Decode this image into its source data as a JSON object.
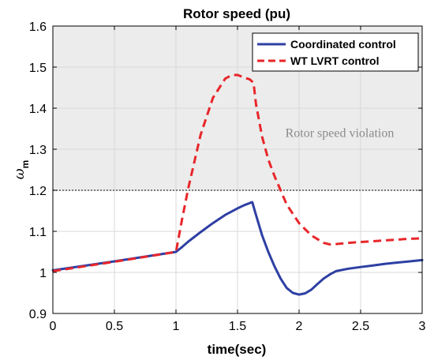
{
  "chart_data": {
    "type": "line",
    "title": "Rotor speed (pu)",
    "xlabel": "time(sec)",
    "ylabel": "ω",
    "ylabel_subscript": "m",
    "xlim": [
      0,
      3
    ],
    "ylim": [
      0.9,
      1.6
    ],
    "xticks": [
      "0",
      "0.5",
      "1",
      "1.5",
      "2",
      "2.5",
      "3"
    ],
    "yticks": [
      "0.9",
      "1",
      "1.1",
      "1.2",
      "1.3",
      "1.4",
      "1.5",
      "1.6"
    ],
    "grid": true,
    "legend_position": "top-right",
    "threshold": {
      "y": 1.2,
      "color": "#555555",
      "style": "dotted"
    },
    "violation_region": {
      "from": 1.2,
      "to": 1.6,
      "color": "#ececec",
      "label": "Rotor speed violation"
    },
    "series": [
      {
        "name": "Coordinated control",
        "color": "#2e3fa3",
        "style": "solid",
        "x": [
          0,
          0.5,
          1.0,
          1.05,
          1.1,
          1.2,
          1.3,
          1.4,
          1.5,
          1.55,
          1.6,
          1.62,
          1.65,
          1.7,
          1.75,
          1.8,
          1.85,
          1.9,
          1.95,
          2.0,
          2.05,
          2.1,
          2.15,
          2.2,
          2.25,
          2.3,
          2.4,
          2.5,
          2.6,
          2.7,
          2.8,
          2.9,
          3.0
        ],
        "y": [
          1.005,
          1.027,
          1.05,
          1.062,
          1.075,
          1.098,
          1.12,
          1.14,
          1.156,
          1.163,
          1.169,
          1.171,
          1.14,
          1.09,
          1.05,
          1.015,
          0.985,
          0.962,
          0.95,
          0.946,
          0.949,
          0.958,
          0.972,
          0.985,
          0.995,
          1.003,
          1.009,
          1.013,
          1.017,
          1.021,
          1.024,
          1.027,
          1.03
        ]
      },
      {
        "name": "WT LVRT control",
        "color": "#e8262a",
        "style": "dashed",
        "x": [
          0,
          0.5,
          1.0,
          1.05,
          1.1,
          1.2,
          1.3,
          1.4,
          1.45,
          1.5,
          1.55,
          1.6,
          1.63,
          1.65,
          1.7,
          1.75,
          1.8,
          1.9,
          2.0,
          2.1,
          2.2,
          2.25,
          2.3,
          2.4,
          2.5,
          2.6,
          2.7,
          2.8,
          2.9,
          3.0
        ],
        "y": [
          1.003,
          1.026,
          1.05,
          1.13,
          1.205,
          1.335,
          1.425,
          1.472,
          1.48,
          1.481,
          1.475,
          1.47,
          1.462,
          1.41,
          1.33,
          1.275,
          1.235,
          1.165,
          1.12,
          1.09,
          1.072,
          1.068,
          1.069,
          1.072,
          1.074,
          1.076,
          1.078,
          1.08,
          1.082,
          1.083
        ]
      }
    ]
  }
}
